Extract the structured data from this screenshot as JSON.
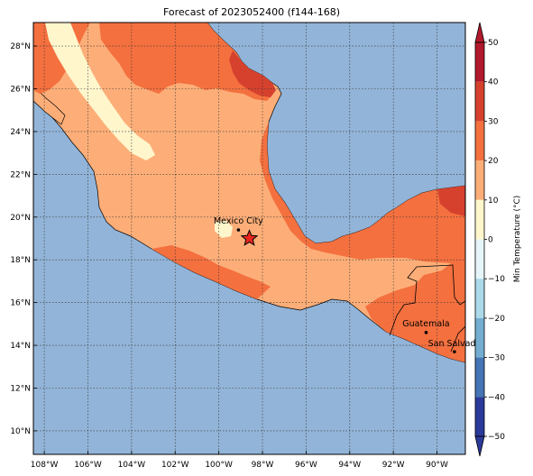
{
  "title": "Forecast of 2023052400 (f144-168)",
  "map": {
    "lon_range": [
      -108.5,
      -88.7
    ],
    "lat_range": [
      8.9,
      29.1
    ],
    "x_ticks": [
      {
        "value": -108,
        "label": "108°W"
      },
      {
        "value": -106,
        "label": "106°W"
      },
      {
        "value": -104,
        "label": "104°W"
      },
      {
        "value": -102,
        "label": "102°W"
      },
      {
        "value": -100,
        "label": "100°W"
      },
      {
        "value": -98,
        "label": "98°W"
      },
      {
        "value": -96,
        "label": "96°W"
      },
      {
        "value": -94,
        "label": "94°W"
      },
      {
        "value": -92,
        "label": "92°W"
      },
      {
        "value": -90,
        "label": "90°W"
      }
    ],
    "y_ticks": [
      {
        "value": 10,
        "label": "10°N"
      },
      {
        "value": 12,
        "label": "12°N"
      },
      {
        "value": 14,
        "label": "14°N"
      },
      {
        "value": 16,
        "label": "16°N"
      },
      {
        "value": 18,
        "label": "18°N"
      },
      {
        "value": 20,
        "label": "20°N"
      },
      {
        "value": 22,
        "label": "22°N"
      },
      {
        "value": 24,
        "label": "24°N"
      },
      {
        "value": 26,
        "label": "26°N"
      },
      {
        "value": 28,
        "label": "28°N"
      }
    ],
    "grid": true,
    "cities": [
      {
        "name": "Mexico City",
        "lon": -99.1,
        "lat": 19.4
      },
      {
        "name": "Guatemala",
        "lon": -90.5,
        "lat": 14.6
      },
      {
        "name": "San Salvador",
        "lon": -89.2,
        "lat": 13.7
      }
    ],
    "marker": {
      "type": "star",
      "lon": -98.6,
      "lat": 19.0
    }
  },
  "colorbar": {
    "label": "Min Temperature (°C)",
    "min": -50,
    "max": 50,
    "ticks": [
      "50",
      "40",
      "30",
      "20",
      "10",
      "0",
      "−10",
      "−20",
      "−30",
      "−40",
      "−50"
    ],
    "levels": [
      {
        "from": 40,
        "to": 50,
        "color": "#b2182b"
      },
      {
        "from": 30,
        "to": 40,
        "color": "#d6412e"
      },
      {
        "from": 20,
        "to": 30,
        "color": "#f4703f"
      },
      {
        "from": 10,
        "to": 20,
        "color": "#fdae78"
      },
      {
        "from": 0,
        "to": 10,
        "color": "#fff6cc"
      },
      {
        "from": -10,
        "to": 0,
        "color": "#e6f5fa"
      },
      {
        "from": -20,
        "to": -10,
        "color": "#abd9e9"
      },
      {
        "from": -30,
        "to": -20,
        "color": "#74add1"
      },
      {
        "from": -40,
        "to": -30,
        "color": "#4575b4"
      },
      {
        "from": -50,
        "to": -40,
        "color": "#2b3a9a"
      }
    ]
  },
  "colors": {
    "ocean": "#92b4d8",
    "cool": "#fff6cc",
    "mild": "#fdae78",
    "warm": "#f4703f",
    "hot": "#d6412e"
  }
}
